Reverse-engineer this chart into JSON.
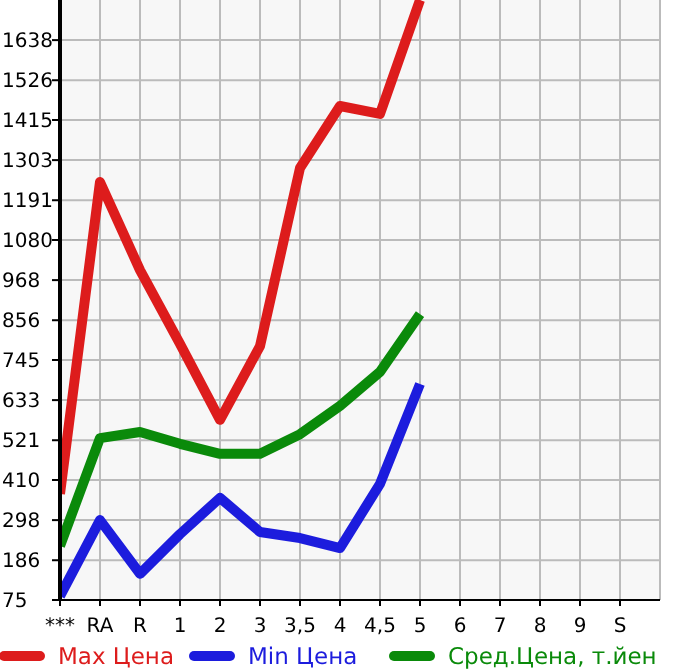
{
  "chart_data": {
    "type": "line",
    "categories": [
      "***",
      "RA",
      "R",
      "1",
      "2",
      "3",
      "3,5",
      "4",
      "4,5",
      "5",
      "6",
      "7",
      "8",
      "9",
      "S"
    ],
    "series": [
      {
        "name": "Max Цена",
        "color": "#dd1c1c",
        "values": [
          371,
          1242,
          996,
          790,
          578,
          784,
          1281,
          1454,
          1432,
          1750,
          null,
          null,
          null,
          null,
          null
        ]
      },
      {
        "name": "Min Цена",
        "color": "#1c1cdd",
        "values": [
          86,
          298,
          148,
          259,
          360,
          265,
          248,
          220,
          399,
          678,
          null,
          null,
          null,
          null,
          null
        ]
      },
      {
        "name": "Сред.Цена, т.йен",
        "color": "#0a8a0a",
        "values": [
          226,
          527,
          544,
          511,
          483,
          483,
          538,
          617,
          712,
          873,
          null,
          null,
          null,
          null,
          null
        ]
      }
    ],
    "ylim": [
      75,
      1750
    ],
    "yticks": [
      75,
      186,
      298,
      410,
      521,
      633,
      745,
      856,
      968,
      1080,
      1191,
      1303,
      1415,
      1526,
      1638
    ],
    "grid": true,
    "legend": "bottom",
    "marker": "none",
    "line_style": "solid"
  }
}
